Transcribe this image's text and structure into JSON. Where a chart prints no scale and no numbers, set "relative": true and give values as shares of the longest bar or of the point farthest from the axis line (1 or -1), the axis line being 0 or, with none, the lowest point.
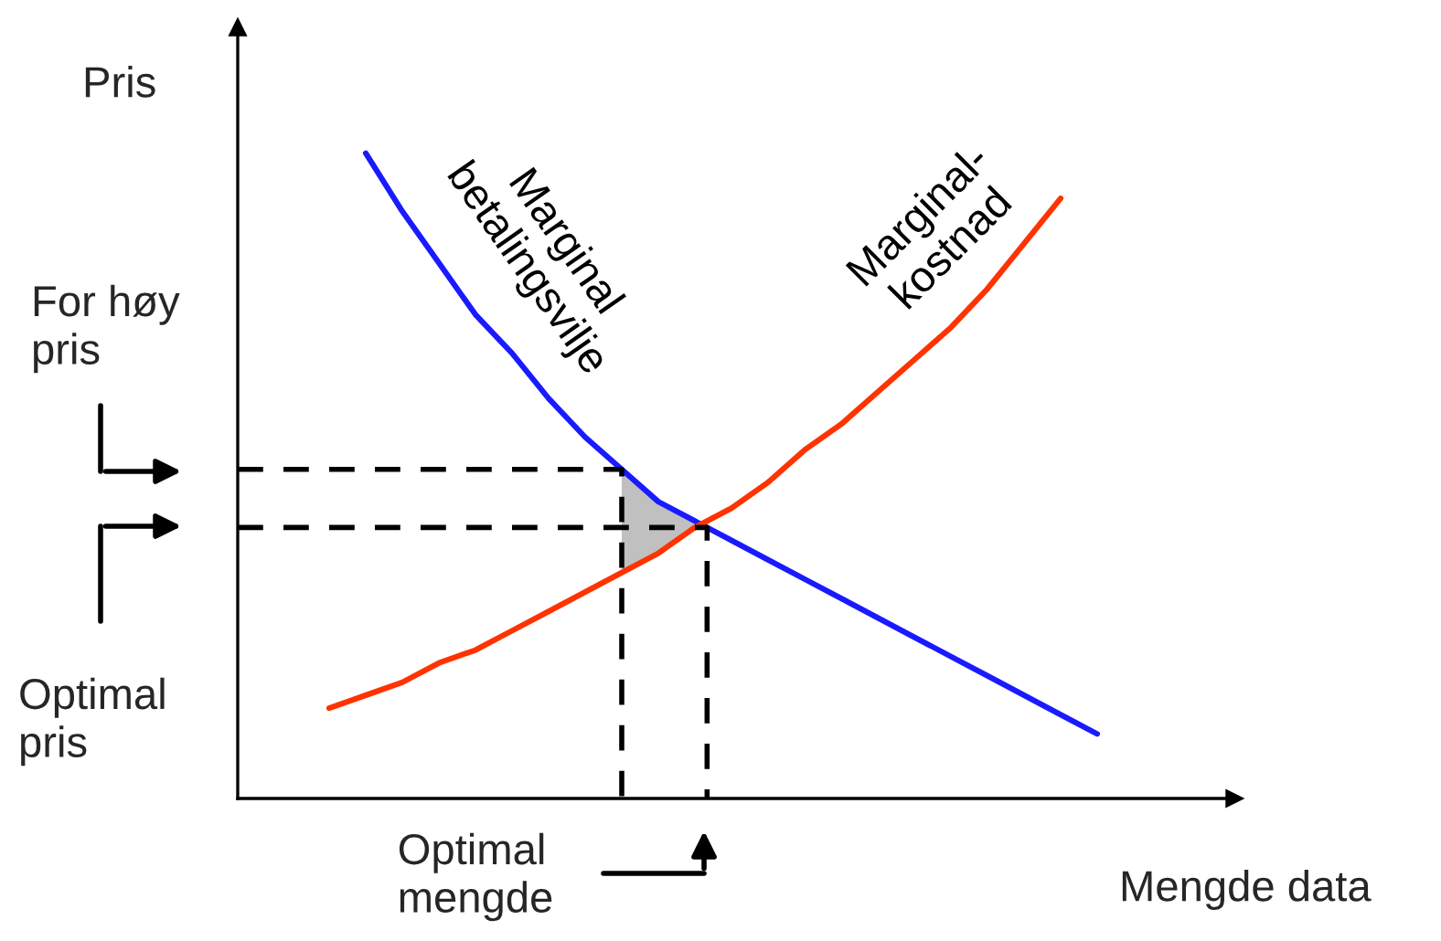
{
  "chart_data": {
    "type": "line",
    "relative": true,
    "xlabel": "Mengde data",
    "ylabel": "Pris",
    "categories": [
      null,
      null,
      null,
      null,
      null,
      null,
      null,
      null,
      null,
      null,
      null,
      null,
      null,
      null,
      null,
      null,
      null,
      null,
      null,
      null,
      null,
      null
    ],
    "series": [
      {
        "name": "Marginal\nbetalingsvilje",
        "color": "#1a1aff",
        "values": [
          null,
          1.0,
          0.91,
          0.83,
          0.75,
          0.69,
          0.62,
          0.56,
          0.51,
          0.46,
          0.43,
          0.4,
          0.37,
          0.34,
          0.31,
          0.28,
          0.25,
          0.22,
          0.19,
          0.16,
          0.13,
          0.1
        ]
      },
      {
        "name": "Marginal-\nkostnad",
        "color": "#ff3300",
        "values": [
          0.14,
          0.16,
          0.18,
          0.21,
          0.23,
          0.26,
          0.29,
          0.32,
          0.35,
          0.38,
          0.42,
          0.45,
          0.49,
          0.54,
          0.58,
          0.63,
          0.68,
          0.73,
          0.79,
          0.86,
          0.93,
          null
        ]
      }
    ],
    "ref_lines": [
      {
        "axis": "y",
        "value": 0.51,
        "line_style": "dashed",
        "color": "#000000"
      },
      {
        "axis": "y",
        "value": 0.42,
        "line_style": "dashed",
        "color": "#000000"
      }
    ],
    "annotations": [
      "For høy\npris",
      "Optimal\npris",
      "Optimal\nmengde"
    ],
    "legend": false
  }
}
